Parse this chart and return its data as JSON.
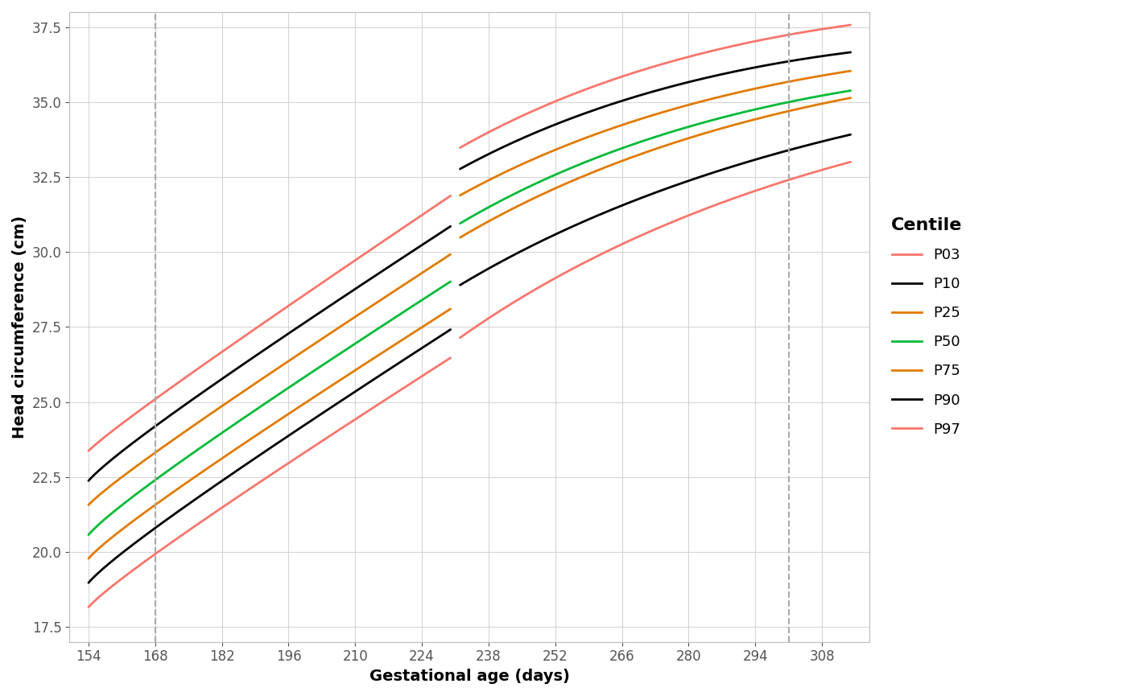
{
  "xlabel": "Gestational age (days)",
  "ylabel": "Head circumference (cm)",
  "x_ticks": [
    154,
    168,
    182,
    196,
    210,
    224,
    238,
    252,
    266,
    280,
    294,
    308
  ],
  "ylim": [
    17,
    38
  ],
  "xlim": [
    150,
    318
  ],
  "vline1": 168,
  "vline2": 301,
  "centiles": [
    "P03",
    "P10",
    "P25",
    "P50",
    "P75",
    "P90",
    "P97"
  ],
  "colors": {
    "P03": "#F8766D",
    "P10": "#000000",
    "P25": "#E07B00",
    "P50": "#00BA38",
    "P75": "#E07B00",
    "P90": "#000000",
    "P97": "#F8766D"
  },
  "background_color": "#FFFFFF",
  "grid_color": "#CCCCCC",
  "vline_color": "#AAAAAA",
  "seg1_end": 230,
  "seg2_start": 232,
  "seg2_end": 314,
  "legend_title": "Centile",
  "linewidth": 2.0,
  "font_size_label": 14,
  "font_size_tick": 12,
  "font_size_legend_title": 14,
  "font_size_legend": 13,
  "centile_data": {
    "P03": {
      "seg1": [
        [
          154,
          18.1
        ],
        [
          168,
          20.1
        ],
        [
          196,
          22.9
        ],
        [
          210,
          24.3
        ],
        [
          224,
          25.6
        ],
        [
          230,
          26.8
        ]
      ],
      "seg2": [
        [
          232,
          27.1
        ],
        [
          252,
          29.2
        ],
        [
          266,
          30.3
        ],
        [
          280,
          31.2
        ],
        [
          294,
          32.0
        ],
        [
          301,
          32.3
        ],
        [
          314,
          33.1
        ]
      ]
    },
    "P10": {
      "seg1": [
        [
          154,
          18.9
        ],
        [
          168,
          21.0
        ],
        [
          196,
          23.8
        ],
        [
          210,
          25.2
        ],
        [
          224,
          26.5
        ],
        [
          230,
          27.8
        ]
      ],
      "seg2": [
        [
          232,
          28.9
        ],
        [
          252,
          30.6
        ],
        [
          266,
          31.5
        ],
        [
          280,
          32.4
        ],
        [
          294,
          33.1
        ],
        [
          301,
          33.4
        ],
        [
          314,
          33.9
        ]
      ]
    },
    "P25": {
      "seg1": [
        [
          154,
          19.7
        ],
        [
          168,
          21.8
        ],
        [
          196,
          24.5
        ],
        [
          210,
          25.9
        ],
        [
          224,
          27.2
        ],
        [
          230,
          28.5
        ]
      ],
      "seg2": [
        [
          232,
          30.5
        ],
        [
          252,
          32.1
        ],
        [
          266,
          33.0
        ],
        [
          280,
          33.8
        ],
        [
          294,
          34.5
        ],
        [
          301,
          34.7
        ],
        [
          314,
          35.1
        ]
      ]
    },
    "P50": {
      "seg1": [
        [
          154,
          20.5
        ],
        [
          168,
          22.6
        ],
        [
          196,
          25.4
        ],
        [
          210,
          26.8
        ],
        [
          224,
          28.1
        ],
        [
          230,
          29.4
        ]
      ],
      "seg2": [
        [
          232,
          31.0
        ],
        [
          252,
          32.5
        ],
        [
          266,
          33.4
        ],
        [
          280,
          34.2
        ],
        [
          294,
          34.9
        ],
        [
          301,
          35.0
        ],
        [
          314,
          35.3
        ]
      ]
    },
    "P75": {
      "seg1": [
        [
          154,
          21.5
        ],
        [
          168,
          23.5
        ],
        [
          196,
          26.3
        ],
        [
          210,
          27.7
        ],
        [
          224,
          29.0
        ],
        [
          230,
          30.3
        ]
      ],
      "seg2": [
        [
          232,
          31.9
        ],
        [
          252,
          33.4
        ],
        [
          266,
          34.2
        ],
        [
          280,
          34.9
        ],
        [
          294,
          35.5
        ],
        [
          301,
          35.7
        ],
        [
          314,
          36.0
        ]
      ]
    },
    "P90": {
      "seg1": [
        [
          154,
          22.3
        ],
        [
          168,
          24.4
        ],
        [
          196,
          27.2
        ],
        [
          210,
          28.6
        ],
        [
          224,
          30.0
        ],
        [
          230,
          31.2
        ]
      ],
      "seg2": [
        [
          232,
          32.8
        ],
        [
          252,
          34.2
        ],
        [
          266,
          35.0
        ],
        [
          280,
          35.7
        ],
        [
          294,
          36.2
        ],
        [
          301,
          36.4
        ],
        [
          314,
          36.6
        ]
      ]
    },
    "P97": {
      "seg1": [
        [
          154,
          23.3
        ],
        [
          168,
          25.3
        ],
        [
          196,
          28.1
        ],
        [
          210,
          29.6
        ],
        [
          224,
          31.0
        ],
        [
          230,
          32.2
        ]
      ],
      "seg2": [
        [
          232,
          33.5
        ],
        [
          252,
          35.0
        ],
        [
          266,
          35.8
        ],
        [
          280,
          36.5
        ],
        [
          294,
          37.1
        ],
        [
          301,
          37.3
        ],
        [
          314,
          37.5
        ]
      ]
    }
  }
}
